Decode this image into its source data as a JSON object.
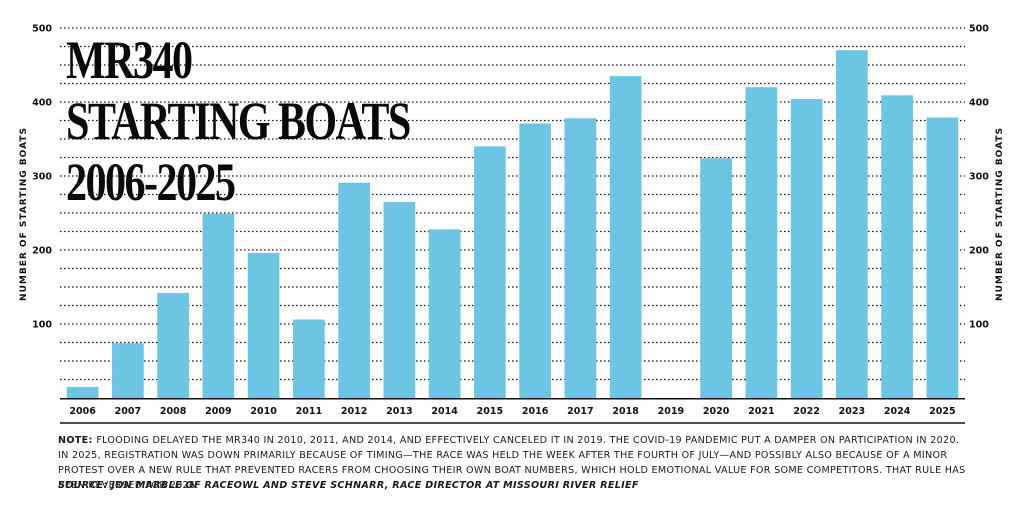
{
  "title_lines": [
    "MR340",
    "STARTING BOATS",
    "2006-2025"
  ],
  "note": {
    "label": "NOTE:",
    "text": "Flooding delayed the MR340 in 2010, 2011, and 2014, and effectively canceled it in 2019. The COVID-19 pandemic put a damper on participation in 2020. In 2025, registration was down primarily because of timing—the race was held the week after the Fourth of July—and possibly also because of a minor protest over a new rule that prevented racers from choosing their own boat numbers, which hold emotional value for some competitors. That rule has been reversed for 2026."
  },
  "source": "Source: Jon Marble of RaceOwl and Steve Schnarr, race director at Missouri River Relief",
  "colors": {
    "bar": "#6cc5e3",
    "text": "#111111",
    "grid": "#111111"
  },
  "chart_data": {
    "type": "bar",
    "title": "MR340 STARTING BOATS 2006-2025",
    "ylabel_left": "NUMBER OF STARTING BOATS",
    "ylabel_right": "NUMBER OF STARTING BOATS",
    "xlabel": "",
    "ylim": [
      0,
      500
    ],
    "yticks": [
      100,
      200,
      300,
      400,
      500
    ],
    "grid": "dotted horizontal lines every 25",
    "categories": [
      "2006",
      "2007",
      "2008",
      "2009",
      "2010",
      "2011",
      "2012",
      "2013",
      "2014",
      "2015",
      "2016",
      "2017",
      "2018",
      "2019",
      "2020",
      "2021",
      "2022",
      "2023",
      "2024",
      "2025"
    ],
    "values": [
      15,
      74,
      142,
      249,
      196,
      106,
      291,
      265,
      228,
      340,
      371,
      378,
      435,
      0,
      324,
      420,
      404,
      470,
      409,
      379
    ]
  }
}
